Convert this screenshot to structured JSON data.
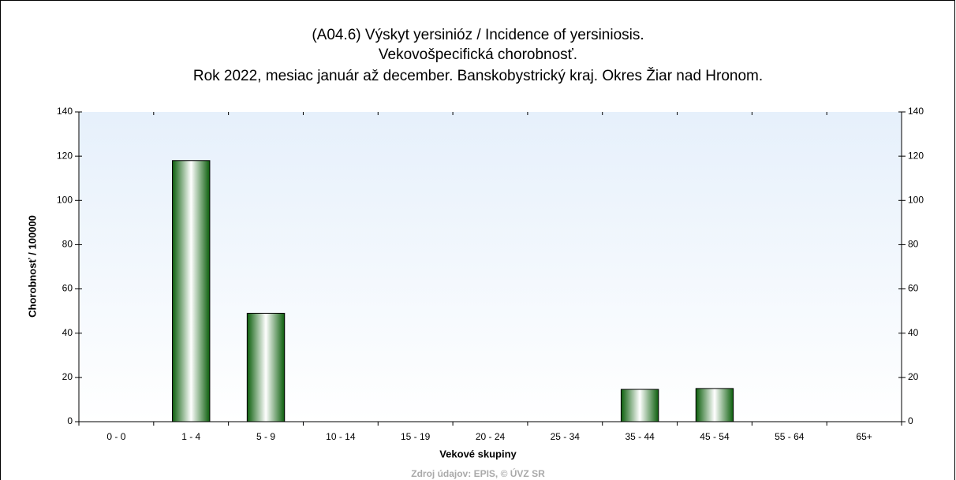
{
  "chart_data": {
    "type": "bar",
    "title": [
      "(A04.6) Výskyt yersinióz / Incidence of yersiniosis.",
      "Vekovošpecifická chorobnosť.",
      "Rok 2022, mesiac január až december. Banskobystrický kraj. Okres Žiar nad Hronom."
    ],
    "x_label": "Vekové skupiny",
    "y_label": "Chorobnosť / 100000",
    "source": "Zdroj údajov: EPIS, © ÚVZ SR",
    "categories": [
      "0 - 0",
      "1 - 4",
      "5 - 9",
      "10 - 14",
      "15 - 19",
      "20 - 24",
      "25 - 34",
      "35 - 44",
      "45 - 54",
      "55 - 64",
      "65+"
    ],
    "values": [
      0,
      118,
      49,
      0,
      0,
      0,
      0,
      14.6,
      15,
      0,
      0
    ],
    "color": "#1a7a1a",
    "ylim": [
      0,
      140
    ],
    "yticks": [
      0,
      20,
      40,
      60,
      80,
      100,
      120,
      140
    ],
    "y2lim": [
      0,
      140
    ],
    "y2ticks": [
      0,
      20,
      40,
      60,
      80,
      100,
      120,
      140
    ]
  }
}
